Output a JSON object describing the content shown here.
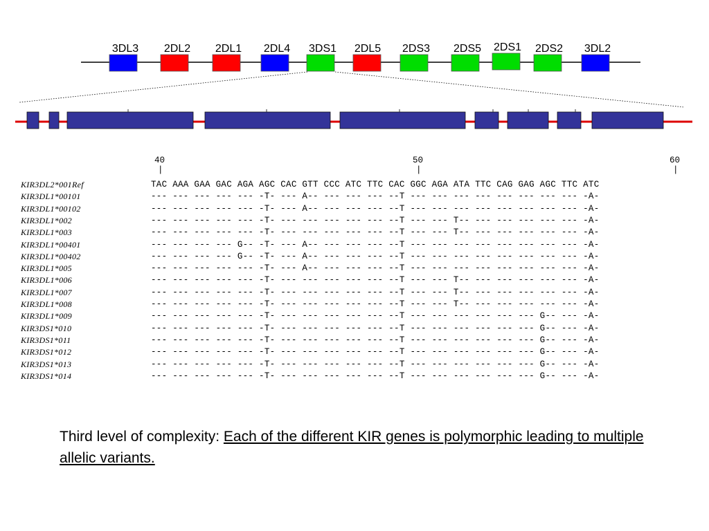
{
  "gene_cluster": {
    "genes": [
      {
        "name": "3DL3",
        "color": "#0000ff"
      },
      {
        "name": "2DL2",
        "color": "#ff0000"
      },
      {
        "name": "2DL1",
        "color": "#ff0000"
      },
      {
        "name": "2DL4",
        "color": "#0000ff"
      },
      {
        "name": "3DS1",
        "color": "#00dd00"
      },
      {
        "name": "2DL5",
        "color": "#ff0000"
      },
      {
        "name": "2DS3",
        "color": "#00dd00"
      },
      {
        "name": "2DS5",
        "color": "#00dd00"
      },
      {
        "name": "2DS1",
        "color": "#00dd00"
      },
      {
        "name": "2DS2",
        "color": "#00dd00"
      },
      {
        "name": "3DL2",
        "color": "#0000ff"
      }
    ],
    "expanded_gene": "3DS1"
  },
  "exon_structure": {
    "exon_count": 9,
    "exon_color": "#333399",
    "line_color": "#dd0000"
  },
  "alignment": {
    "positions": [
      "40",
      "50",
      "60"
    ],
    "rows": [
      {
        "name": "KIR3DL2*001Ref",
        "seq": "TAC AAA GAA GAC AGA AGC CAC GTT CCC ATC TTC CAC GGC AGA ATA TTC CAG GAG AGC TTC ATC"
      },
      {
        "name": "KIR3DL1*00101",
        "seq": "--- --- --- --- --- -T- --- A-- --- --- --- --T --- --- --- --- --- --- --- --- -A-"
      },
      {
        "name": "KIR3DL1*00102",
        "seq": "--- --- --- --- --- -T- --- A-- --- --- --- --T --- --- --- --- --- --- --- --- -A-"
      },
      {
        "name": "KIR3DL1*002",
        "seq": "--- --- --- --- --- -T- --- --- --- --- --- --T --- --- T-- --- --- --- --- --- -A-"
      },
      {
        "name": "KIR3DL1*003",
        "seq": "--- --- --- --- --- -T- --- --- --- --- --- --T --- --- T-- --- --- --- --- --- -A-"
      },
      {
        "name": "KIR3DL1*00401",
        "seq": "--- --- --- --- G-- -T- --- A-- --- --- --- --T --- --- --- --- --- --- --- --- -A-"
      },
      {
        "name": "KIR3DL1*00402",
        "seq": "--- --- --- --- G-- -T- --- A-- --- --- --- --T --- --- --- --- --- --- --- --- -A-"
      },
      {
        "name": "KIR3DL1*005",
        "seq": "--- --- --- --- --- -T- --- A-- --- --- --- --T --- --- --- --- --- --- --- --- -A-"
      },
      {
        "name": "KIR3DL1*006",
        "seq": "--- --- --- --- --- -T- --- --- --- --- --- --T --- --- T-- --- --- --- --- --- -A-"
      },
      {
        "name": "KIR3DL1*007",
        "seq": "--- --- --- --- --- -T- --- --- --- --- --- --T --- --- T-- --- --- --- --- --- -A-"
      },
      {
        "name": "KIR3DL1*008",
        "seq": "--- --- --- --- --- -T- --- --- --- --- --- --T --- --- T-- --- --- --- --- --- -A-"
      },
      {
        "name": "KIR3DL1*009",
        "seq": "--- --- --- --- --- -T- --- --- --- --- --- --T --- --- --- --- --- --- G-- --- -A-"
      },
      {
        "name": "KIR3DS1*010",
        "seq": "--- --- --- --- --- -T- --- --- --- --- --- --T --- --- --- --- --- --- G-- --- -A-"
      },
      {
        "name": "KIR3DS1*011",
        "seq": "--- --- --- --- --- -T- --- --- --- --- --- --T --- --- --- --- --- --- G-- --- -A-"
      },
      {
        "name": "KIR3DS1*012",
        "seq": "--- --- --- --- --- -T- --- --- --- --- --- --T --- --- --- --- --- --- G-- --- -A-"
      },
      {
        "name": "KIR3DS1*013",
        "seq": "--- --- --- --- --- -T- --- --- --- --- --- --T --- --- --- --- --- --- G-- --- -A-"
      },
      {
        "name": "KIR3DS1*014",
        "seq": "--- --- --- --- --- -T- --- --- --- --- --- --T --- --- --- --- --- --- G-- --- -A-"
      }
    ]
  },
  "caption": {
    "lead": "Third level of complexity: ",
    "emphasis": "Each of the different KIR genes is polymorphic leading to multiple allelic variants."
  }
}
